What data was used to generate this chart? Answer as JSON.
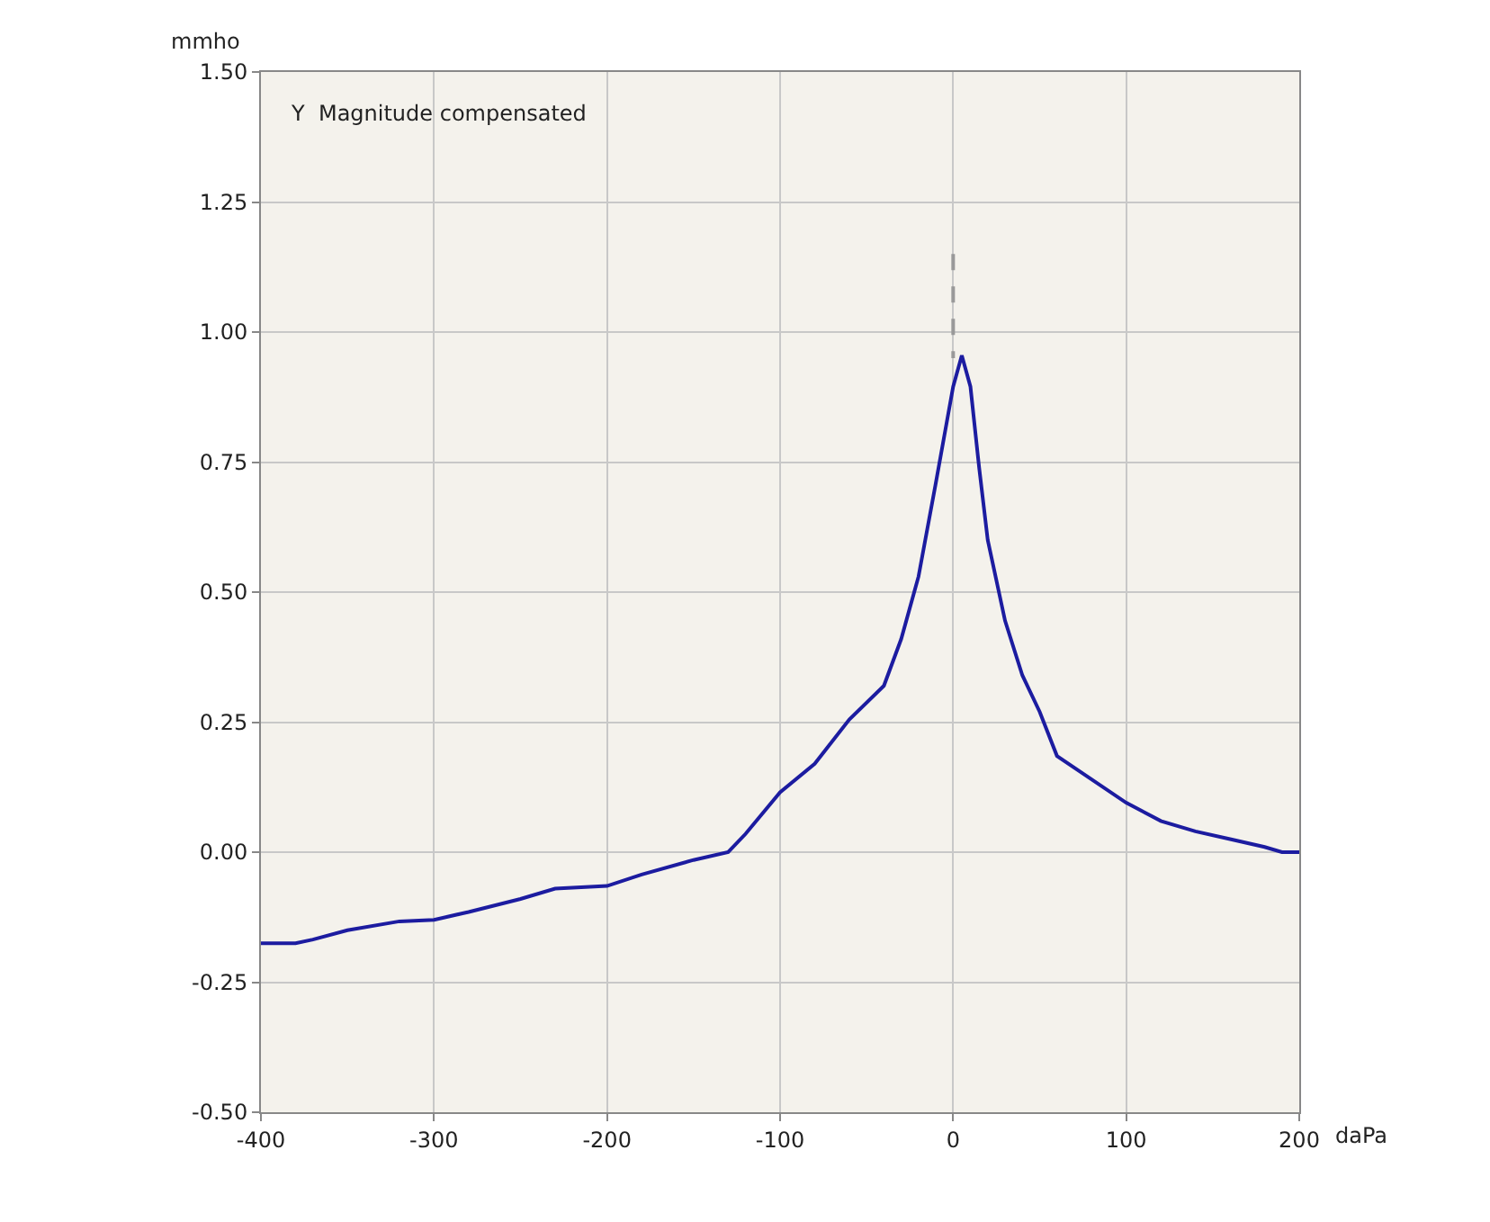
{
  "chart_data": {
    "type": "line",
    "xlabel": "daPa",
    "ylabel": "mmho",
    "annotations": [
      "Y  Magnitude compensated"
    ],
    "xlim": [
      -400,
      200
    ],
    "xticks": [
      -400,
      -300,
      -200,
      -100,
      0,
      100,
      200
    ],
    "ylim": [
      -0.5,
      1.5
    ],
    "yticks": [
      {
        "value": -0.5,
        "label": "-0.50"
      },
      {
        "value": -0.25,
        "label": "-0.25"
      },
      {
        "value": 0,
        "label": "0.00"
      },
      {
        "value": 0.25,
        "label": "0.25"
      },
      {
        "value": 0.5,
        "label": "0.50"
      },
      {
        "value": 0.75,
        "label": "0.75"
      },
      {
        "value": 1,
        "label": "1.00"
      },
      {
        "value": 1.25,
        "label": "1.25"
      },
      {
        "value": 1.5,
        "label": "1.50"
      }
    ],
    "grid": true,
    "marker": "none",
    "series": [
      {
        "color": "#1c1ca0",
        "line_style": "solid",
        "x": [
          -400,
          -380,
          -370,
          -350,
          -320,
          -300,
          -280,
          -250,
          -230,
          -200,
          -180,
          -150,
          -130,
          -120,
          -100,
          -80,
          -60,
          -40,
          -30,
          -20,
          -10,
          0,
          5,
          10,
          15,
          20,
          30,
          40,
          50,
          60,
          80,
          100,
          120,
          140,
          160,
          180,
          190,
          200
        ],
        "values": [
          -0.175,
          -0.175,
          -0.168,
          -0.15,
          -0.133,
          -0.13,
          -0.115,
          -0.09,
          -0.07,
          -0.065,
          -0.043,
          -0.015,
          0.0,
          0.035,
          0.115,
          0.17,
          0.255,
          0.32,
          0.41,
          0.53,
          0.71,
          0.895,
          0.955,
          0.895,
          0.74,
          0.6,
          0.445,
          0.34,
          0.27,
          0.185,
          0.14,
          0.095,
          0.06,
          0.04,
          0.025,
          0.01,
          0.0,
          0.0
        ]
      },
      {
        "color": "#999999",
        "line_style": "dashed",
        "x": [
          0,
          0
        ],
        "values": [
          1.15,
          0.95
        ]
      }
    ]
  }
}
